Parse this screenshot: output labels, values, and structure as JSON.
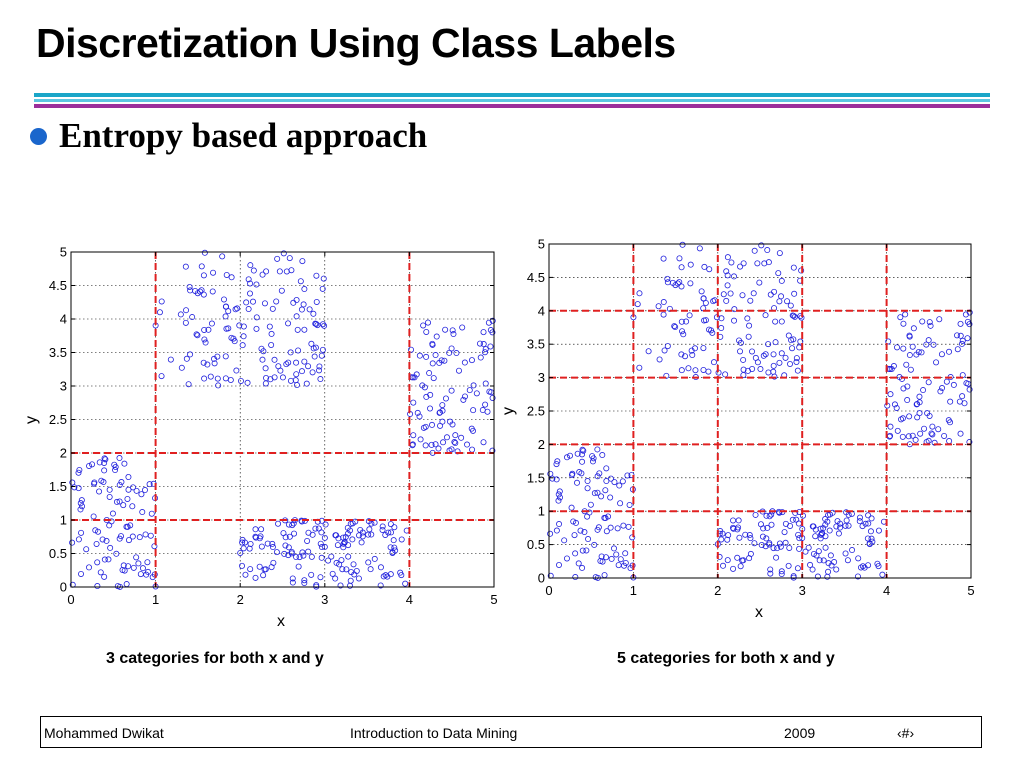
{
  "slide": {
    "title": "Discretization Using Class Labels",
    "bullet": "Entropy based approach",
    "colors": {
      "rule_cyan": "#1aa6c8",
      "rule_purple": "#9b2f9b",
      "bullet": "#1a66cc",
      "points": "#2222dd",
      "cut_lines": "#e02020"
    }
  },
  "captions": {
    "left": "3 categories for both x and y",
    "right": "5 categories for both x and y"
  },
  "footer": {
    "author": "Mohammed Dwikat",
    "course": "Introduction to Data Mining",
    "year": "2009",
    "page": "‹#›"
  },
  "chart_data": [
    {
      "type": "scatter",
      "title": "",
      "xlabel": "x",
      "ylabel": "y",
      "xlim": [
        0,
        5
      ],
      "ylim": [
        0,
        5
      ],
      "x_ticks": [
        "0",
        "1",
        "2",
        "3",
        "4",
        "5"
      ],
      "y_ticks": [
        "0",
        "0.5",
        "1",
        "1.5",
        "2",
        "2.5",
        "3",
        "3.5",
        "4",
        "4.5",
        "5"
      ],
      "grid": true,
      "marker": "open-circle",
      "x_cuts": [
        1,
        4
      ],
      "y_cuts": [
        1,
        2
      ],
      "clusters": [
        {
          "x_range": [
            0,
            1
          ],
          "y_range": [
            0,
            2
          ],
          "approx_points": 100
        },
        {
          "x_range": [
            1,
            3
          ],
          "y_range": [
            3,
            5
          ],
          "approx_points": 150
        },
        {
          "x_range": [
            2,
            4
          ],
          "y_range": [
            0,
            1
          ],
          "approx_points": 150
        },
        {
          "x_range": [
            4,
            5
          ],
          "y_range": [
            2,
            4
          ],
          "approx_points": 100
        }
      ]
    },
    {
      "type": "scatter",
      "title": "",
      "xlabel": "x",
      "ylabel": "y",
      "xlim": [
        0,
        5
      ],
      "ylim": [
        0,
        5
      ],
      "x_ticks": [
        "0",
        "1",
        "2",
        "3",
        "4",
        "5"
      ],
      "y_ticks": [
        "0",
        "0.5",
        "1",
        "1.5",
        "2",
        "2.5",
        "3",
        "3.5",
        "4",
        "4.5",
        "5"
      ],
      "grid": true,
      "marker": "open-circle",
      "x_cuts": [
        1,
        2,
        3,
        4
      ],
      "y_cuts": [
        1,
        2,
        3,
        4
      ],
      "clusters": [
        {
          "x_range": [
            0,
            1
          ],
          "y_range": [
            0,
            2
          ],
          "approx_points": 100
        },
        {
          "x_range": [
            1,
            3
          ],
          "y_range": [
            3,
            5
          ],
          "approx_points": 150
        },
        {
          "x_range": [
            2,
            4
          ],
          "y_range": [
            0,
            1
          ],
          "approx_points": 150
        },
        {
          "x_range": [
            4,
            5
          ],
          "y_range": [
            2,
            4
          ],
          "approx_points": 100
        }
      ]
    }
  ]
}
